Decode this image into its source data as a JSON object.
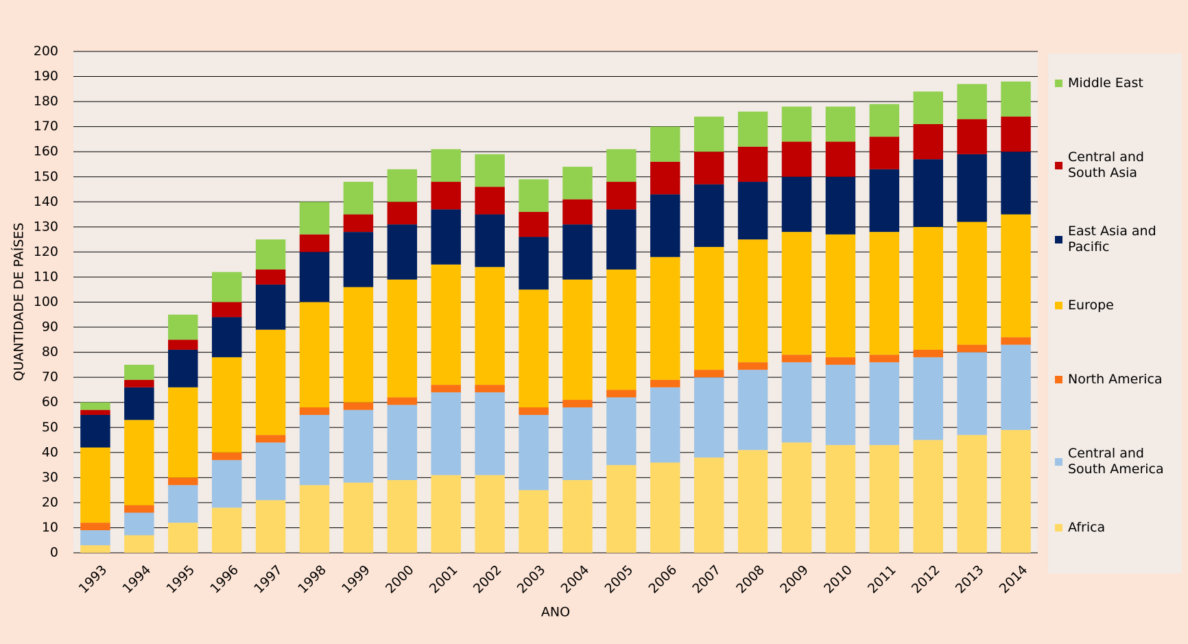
{
  "chart_data": {
    "type": "stacked_bar",
    "x_label": "ANO",
    "y_label": "QUANTIDADE DE PAÍSES",
    "categories": [
      "1993",
      "1994",
      "1995",
      "1996",
      "1997",
      "1998",
      "1999",
      "2000",
      "2001",
      "2002",
      "2003",
      "2004",
      "2005",
      "2006",
      "2007",
      "2008",
      "2009",
      "2010",
      "2011",
      "2012",
      "2013",
      "2014"
    ],
    "ylim": [
      0,
      200
    ],
    "yticks": [
      0,
      10,
      20,
      30,
      40,
      50,
      60,
      70,
      80,
      90,
      100,
      110,
      120,
      130,
      140,
      150,
      160,
      170,
      180,
      190,
      200
    ],
    "grid": true,
    "legend": "right",
    "series": [
      {
        "name": "Africa",
        "color": "#ffd966",
        "values": [
          3,
          7,
          12,
          18,
          21,
          27,
          28,
          29,
          31,
          31,
          25,
          29,
          35,
          36,
          38,
          41,
          44,
          43,
          43,
          45,
          47,
          49
        ]
      },
      {
        "name": "Central and South America",
        "color": "#9dc3e6",
        "values": [
          6,
          9,
          15,
          19,
          23,
          28,
          29,
          30,
          33,
          33,
          30,
          29,
          27,
          30,
          32,
          32,
          32,
          32,
          33,
          33,
          33,
          34
        ]
      },
      {
        "name": "North America",
        "color": "#fa7014",
        "values": [
          3,
          3,
          3,
          3,
          3,
          3,
          3,
          3,
          3,
          3,
          3,
          3,
          3,
          3,
          3,
          3,
          3,
          3,
          3,
          3,
          3,
          3
        ]
      },
      {
        "name": "Europe",
        "color": "#ffc000",
        "values": [
          30,
          34,
          36,
          38,
          42,
          42,
          46,
          47,
          48,
          47,
          47,
          48,
          48,
          49,
          49,
          49,
          49,
          49,
          49,
          49,
          49,
          49
        ]
      },
      {
        "name": "East Asia and Pacific",
        "color": "#002060",
        "values": [
          13,
          13,
          15,
          16,
          18,
          20,
          22,
          22,
          22,
          21,
          21,
          22,
          24,
          25,
          25,
          23,
          22,
          23,
          25,
          27,
          27,
          25
        ]
      },
      {
        "name": "Central and South Asia",
        "color": "#c00000",
        "values": [
          2,
          3,
          4,
          6,
          6,
          7,
          7,
          9,
          11,
          11,
          10,
          10,
          11,
          13,
          13,
          14,
          14,
          14,
          13,
          14,
          14,
          14
        ]
      },
      {
        "name": "Middle East",
        "color": "#92d050",
        "values": [
          3,
          6,
          10,
          12,
          12,
          13,
          13,
          13,
          13,
          13,
          13,
          13,
          13,
          14,
          14,
          14,
          14,
          14,
          13,
          13,
          14,
          14
        ]
      }
    ]
  }
}
